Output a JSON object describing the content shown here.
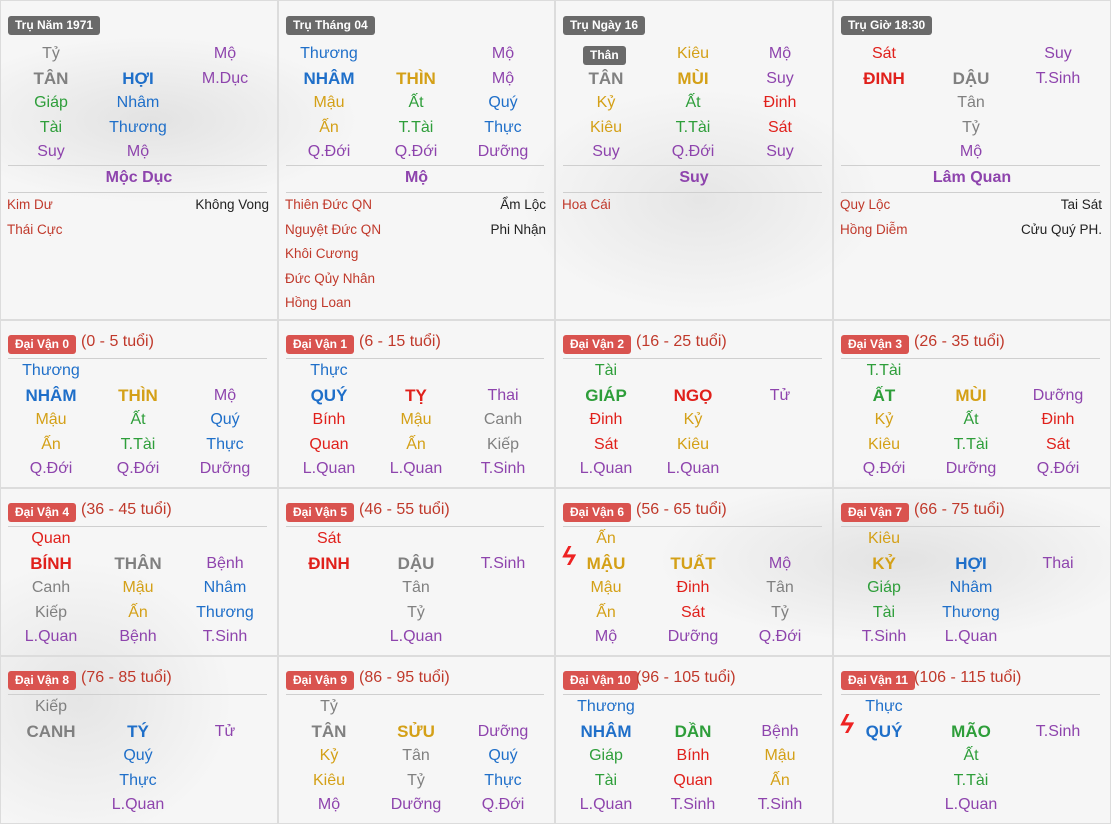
{
  "colors": {
    "wood": "#2e9e3a",
    "fire": "#e0201b",
    "earth": "#d4a017",
    "metal": "#808080",
    "water": "#1f6fc9",
    "purple": "#8e44ad",
    "red": "#c0392b",
    "navy": "#2a4fb8"
  },
  "pillars": [
    {
      "title": "Trụ Năm 1971",
      "top": [
        "Tỷ",
        "",
        "Mộ"
      ],
      "main": [
        "TÂN",
        "HỢI",
        "M.Dục"
      ],
      "r2": [
        "Giáp",
        "Nhâm",
        ""
      ],
      "r3": [
        "Tài",
        "Thương",
        ""
      ],
      "r4": [
        "Suy",
        "Mộ",
        ""
      ],
      "stage": "Mộc Dục",
      "stars_left": [
        "Kim Dư",
        "Thái Cực"
      ],
      "stars_right": [
        "Không Vong"
      ]
    },
    {
      "title": "Trụ Tháng 04",
      "top": [
        "Thương",
        "",
        "Mộ"
      ],
      "main": [
        "NHÂM",
        "THÌN",
        "Mộ"
      ],
      "r2": [
        "Mậu",
        "Ất",
        "Quý"
      ],
      "r3": [
        "Ấn",
        "T.Tài",
        "Thực"
      ],
      "r4": [
        "Q.Đới",
        "Q.Đới",
        "Dưỡng"
      ],
      "stage": "Mộ",
      "stars_left": [
        "Thiên Đức QN",
        "Nguyệt Đức QN",
        "Khôi Cương",
        "Đức Qủy Nhân",
        "Hồng Loan"
      ],
      "stars_right": [
        "Ẩm Lộc",
        "Phi Nhận"
      ]
    },
    {
      "title": "Trụ Ngày 16",
      "than": "Thân",
      "top": [
        "",
        "Kiêu",
        "Mộ"
      ],
      "main": [
        "TÂN",
        "MÙI",
        "Suy"
      ],
      "r2": [
        "Kỷ",
        "Ất",
        "Đinh"
      ],
      "r3": [
        "Kiêu",
        "T.Tài",
        "Sát"
      ],
      "r4": [
        "Suy",
        "Q.Đới",
        "Suy"
      ],
      "stage": "Suy",
      "stars_left": [
        "Hoa Cái"
      ],
      "stars_right": []
    },
    {
      "title": "Trụ Giờ 18:30",
      "top": [
        "Sát",
        "",
        "Suy"
      ],
      "main": [
        "ĐINH",
        "DẬU",
        "T.Sinh"
      ],
      "r2": [
        "",
        "Tân",
        ""
      ],
      "r3": [
        "",
        "Tỷ",
        ""
      ],
      "r4": [
        "",
        "Mộ",
        ""
      ],
      "stage": "Lâm Quan",
      "stars_left": [
        "Quy Lộc",
        "Hồng Diễm"
      ],
      "stars_right": [
        "Tai Sát",
        "Cửu Quý PH."
      ]
    }
  ],
  "dai_van": [
    {
      "label": "Đại Vận 0",
      "age": "(0 - 5 tuổi)",
      "top": "Thương",
      "main": [
        "NHÂM",
        "THÌN",
        "Mộ"
      ],
      "r2": [
        "Mậu",
        "Ất",
        "Quý"
      ],
      "r3": [
        "Ấn",
        "T.Tài",
        "Thực"
      ],
      "r4": [
        "Q.Đới",
        "Q.Đới",
        "Dưỡng"
      ]
    },
    {
      "label": "Đại Vận 1",
      "age": "(6 - 15 tuổi)",
      "top": "Thực",
      "main": [
        "QUÝ",
        "TỴ",
        "Thai"
      ],
      "r2": [
        "Bính",
        "Mậu",
        "Canh"
      ],
      "r3": [
        "Quan",
        "Ấn",
        "Kiếp"
      ],
      "r4": [
        "L.Quan",
        "L.Quan",
        "T.Sinh"
      ]
    },
    {
      "label": "Đại Vận 2",
      "age": "(16 - 25 tuổi)",
      "top": "Tài",
      "main": [
        "GIÁP",
        "NGỌ",
        "Tử"
      ],
      "r2": [
        "Đinh",
        "Kỷ",
        ""
      ],
      "r3": [
        "Sát",
        "Kiêu",
        ""
      ],
      "r4": [
        "L.Quan",
        "L.Quan",
        ""
      ]
    },
    {
      "label": "Đại Vận 3",
      "age": "(26 - 35 tuổi)",
      "top": "T.Tài",
      "main": [
        "ẤT",
        "MÙI",
        "Dưỡng"
      ],
      "r2": [
        "Kỷ",
        "Ất",
        "Đinh"
      ],
      "r3": [
        "Kiêu",
        "T.Tài",
        "Sát"
      ],
      "r4": [
        "Q.Đới",
        "Dưỡng",
        "Q.Đới"
      ]
    },
    {
      "label": "Đại Vận 4",
      "age": "(36 - 45 tuổi)",
      "top": "Quan",
      "main": [
        "BÍNH",
        "THÂN",
        "Bệnh"
      ],
      "r2": [
        "Canh",
        "Mậu",
        "Nhâm"
      ],
      "r3": [
        "Kiếp",
        "Ấn",
        "Thương"
      ],
      "r4": [
        "L.Quan",
        "Bệnh",
        "T.Sinh"
      ]
    },
    {
      "label": "Đại Vận 5",
      "age": "(46 - 55 tuổi)",
      "top": "Sát",
      "main": [
        "ĐINH",
        "DẬU",
        "T.Sinh"
      ],
      "r2": [
        "",
        "Tân",
        ""
      ],
      "r3": [
        "",
        "Tỷ",
        ""
      ],
      "r4": [
        "",
        "L.Quan",
        ""
      ]
    },
    {
      "label": "Đại Vận 6",
      "age": "(56 - 65 tuổi)",
      "top": "Ấn",
      "main": [
        "MẬU",
        "TUẤT",
        "Mộ"
      ],
      "r2": [
        "Mậu",
        "Đinh",
        "Tân"
      ],
      "r3": [
        "Ấn",
        "Sát",
        "Tỷ"
      ],
      "r4": [
        "Mộ",
        "Dưỡng",
        "Q.Đới"
      ]
    },
    {
      "label": "Đại Vận 7",
      "age": "(66 - 75 tuổi)",
      "top": "Kiêu",
      "main": [
        "KỶ",
        "HỢI",
        "Thai"
      ],
      "r2": [
        "Giáp",
        "Nhâm",
        ""
      ],
      "r3": [
        "Tài",
        "Thương",
        ""
      ],
      "r4": [
        "T.Sinh",
        "L.Quan",
        ""
      ]
    },
    {
      "label": "Đại Vận 8",
      "age": "(76 - 85 tuổi)",
      "top": "Kiếp",
      "main": [
        "CANH",
        "TÝ",
        "Tử"
      ],
      "r2": [
        "",
        "Quý",
        ""
      ],
      "r3": [
        "",
        "Thực",
        ""
      ],
      "r4": [
        "",
        "L.Quan",
        ""
      ]
    },
    {
      "label": "Đại Vận 9",
      "age": "(86 - 95 tuổi)",
      "top": "Tỷ",
      "main": [
        "TÂN",
        "SỬU",
        "Dưỡng"
      ],
      "r2": [
        "Kỷ",
        "Tân",
        "Quý"
      ],
      "r3": [
        "Kiêu",
        "Tỷ",
        "Thực"
      ],
      "r4": [
        "Mộ",
        "Dưỡng",
        "Q.Đới"
      ]
    },
    {
      "label": "Đại Vận 10",
      "age": "(96 - 105 tuổi)",
      "top": "Thương",
      "main": [
        "NHÂM",
        "DẦN",
        "Bệnh"
      ],
      "r2": [
        "Giáp",
        "Bính",
        "Mậu"
      ],
      "r3": [
        "Tài",
        "Quan",
        "Ấn"
      ],
      "r4": [
        "L.Quan",
        "T.Sinh",
        "T.Sinh"
      ]
    },
    {
      "label": "Đại Vận 11",
      "age": "(106 - 115 tuổi)",
      "top": "Thực",
      "main": [
        "QUÝ",
        "MÃO",
        "T.Sinh"
      ],
      "r2": [
        "",
        "Ất",
        ""
      ],
      "r3": [
        "",
        "T.Tài",
        ""
      ],
      "r4": [
        "",
        "L.Quan",
        ""
      ]
    }
  ]
}
